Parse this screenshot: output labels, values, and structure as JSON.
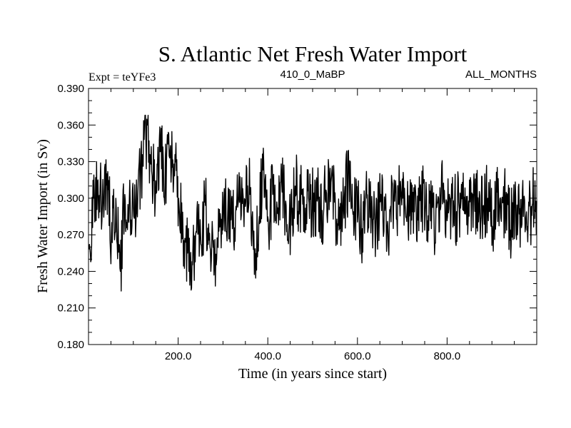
{
  "chart_data": {
    "type": "line",
    "title": "S. Atlantic Net Fresh Water Import",
    "header_left": "Expt = teYFe3",
    "header_center": "410_0_MaBP",
    "header_right": "ALL_MONTHS",
    "xlabel": "Time (in years since start)",
    "ylabel": "Fresh Water Import (in Sv)",
    "xlim": [
      0,
      1000
    ],
    "ylim": [
      0.18,
      0.39
    ],
    "x_ticks": [
      200,
      400,
      600,
      800
    ],
    "x_tick_labels": [
      "200.0",
      "400.0",
      "600.0",
      "800.0"
    ],
    "y_ticks": [
      0.18,
      0.21,
      0.24,
      0.27,
      0.3,
      0.33,
      0.36,
      0.39
    ],
    "y_tick_labels": [
      "0.180",
      "0.210",
      "0.240",
      "0.270",
      "0.300",
      "0.330",
      "0.360",
      "0.390"
    ],
    "grid": false,
    "series": [
      {
        "name": "Fresh Water Import",
        "x_start": 1,
        "x_step": 10,
        "values": [
          0.258,
          0.3,
          0.315,
          0.296,
          0.32,
          0.268,
          0.3,
          0.24,
          0.303,
          0.297,
          0.285,
          0.315,
          0.33,
          0.36,
          0.322,
          0.304,
          0.339,
          0.317,
          0.333,
          0.328,
          0.3,
          0.27,
          0.255,
          0.248,
          0.272,
          0.262,
          0.294,
          0.26,
          0.25,
          0.273,
          0.281,
          0.292,
          0.275,
          0.3,
          0.286,
          0.297,
          0.305,
          0.258,
          0.285,
          0.33,
          0.282,
          0.303,
          0.291,
          0.312,
          0.294,
          0.28,
          0.31,
          0.298,
          0.301,
          0.3,
          0.296,
          0.3,
          0.29,
          0.304,
          0.313,
          0.292,
          0.275,
          0.302,
          0.318,
          0.289,
          0.286,
          0.275,
          0.3,
          0.287,
          0.278,
          0.297,
          0.29,
          0.279,
          0.302,
          0.296,
          0.3,
          0.294,
          0.282,
          0.29,
          0.311,
          0.284,
          0.296,
          0.277,
          0.3,
          0.303,
          0.285,
          0.3,
          0.289,
          0.298,
          0.287,
          0.297,
          0.303,
          0.288,
          0.294,
          0.3,
          0.277,
          0.305,
          0.281,
          0.298,
          0.274,
          0.291,
          0.287,
          0.3,
          0.282,
          0.296
        ],
        "color": "#000000"
      }
    ]
  }
}
